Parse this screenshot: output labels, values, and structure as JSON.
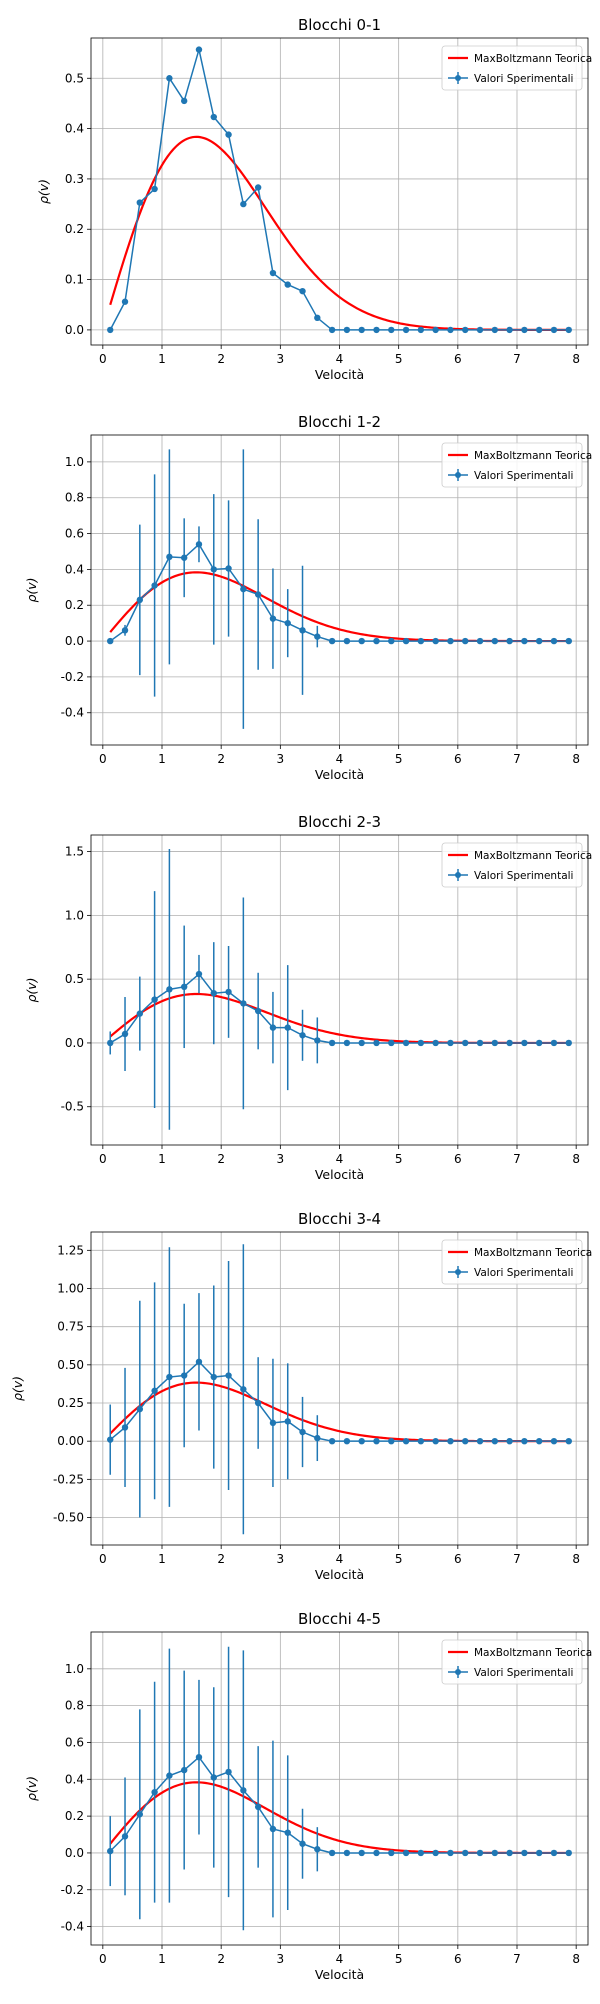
{
  "colors": {
    "theory": "#ff0000",
    "experimental": "#1f77b4",
    "grid": "#b0b0b0",
    "axes": "#000000"
  },
  "chart_data": [
    {
      "type": "line",
      "title": "Blocchi 0-1",
      "xlabel": "Velocità",
      "ylabel": "ρ(v)",
      "xlim": [
        -0.2,
        8.2
      ],
      "ylim": [
        -0.03,
        0.58
      ],
      "xticks": [
        0,
        1,
        2,
        3,
        4,
        5,
        6,
        7,
        8
      ],
      "yticks": [
        0.0,
        0.1,
        0.2,
        0.3,
        0.4,
        0.5
      ],
      "ytick_decimals": 1,
      "grid": true,
      "legend_position": "top-right",
      "series": [
        {
          "name": "MaxBoltzmann Teorica",
          "kind": "line",
          "distribution": "maxwell-boltzmann-2d",
          "kT": 2.5
        },
        {
          "name": "Valori Sperimentali",
          "kind": "errorbar",
          "x": [
            0.125,
            0.375,
            0.625,
            0.875,
            1.125,
            1.375,
            1.625,
            1.875,
            2.125,
            2.375,
            2.625,
            2.875,
            3.125,
            3.375,
            3.625,
            3.875,
            4.125,
            4.375,
            4.625,
            4.875,
            5.125,
            5.375,
            5.625,
            5.875,
            6.125,
            6.375,
            6.625,
            6.875,
            7.125,
            7.375,
            7.625,
            7.875
          ],
          "y": [
            0.0,
            0.056,
            0.253,
            0.28,
            0.5,
            0.455,
            0.557,
            0.423,
            0.388,
            0.25,
            0.283,
            0.113,
            0.09,
            0.077,
            0.024,
            0,
            0,
            0,
            0,
            0,
            0,
            0,
            0,
            0,
            0,
            0,
            0,
            0,
            0,
            0,
            0,
            0
          ],
          "yerr": [
            0,
            0,
            0,
            0,
            0,
            0,
            0,
            0,
            0,
            0,
            0,
            0,
            0,
            0,
            0,
            0,
            0,
            0,
            0,
            0,
            0,
            0,
            0,
            0,
            0,
            0,
            0,
            0,
            0,
            0,
            0,
            0
          ]
        }
      ]
    },
    {
      "type": "line",
      "title": "Blocchi 1-2",
      "xlabel": "Velocità",
      "ylabel": "ρ(v)",
      "xlim": [
        -0.2,
        8.2
      ],
      "ylim": [
        -0.58,
        1.15
      ],
      "xticks": [
        0,
        1,
        2,
        3,
        4,
        5,
        6,
        7,
        8
      ],
      "yticks": [
        -0.4,
        -0.2,
        0.0,
        0.2,
        0.4,
        0.6,
        0.8,
        1.0
      ],
      "ytick_decimals": 1,
      "grid": true,
      "legend_position": "top-right",
      "series": [
        {
          "name": "MaxBoltzmann Teorica",
          "kind": "line",
          "distribution": "maxwell-boltzmann-2d",
          "kT": 2.5
        },
        {
          "name": "Valori Sperimentali",
          "kind": "errorbar",
          "x": [
            0.125,
            0.375,
            0.625,
            0.875,
            1.125,
            1.375,
            1.625,
            1.875,
            2.125,
            2.375,
            2.625,
            2.875,
            3.125,
            3.375,
            3.625,
            3.875,
            4.125,
            4.375,
            4.625,
            4.875,
            5.125,
            5.375,
            5.625,
            5.875,
            6.125,
            6.375,
            6.625,
            6.875,
            7.125,
            7.375,
            7.625,
            7.875
          ],
          "y": [
            0.0,
            0.06,
            0.23,
            0.31,
            0.47,
            0.465,
            0.54,
            0.4,
            0.405,
            0.29,
            0.26,
            0.125,
            0.1,
            0.06,
            0.025,
            0,
            0,
            0,
            0,
            0,
            0,
            0,
            0,
            0,
            0,
            0,
            0,
            0,
            0,
            0,
            0,
            0
          ],
          "yerr": [
            0.01,
            0.03,
            0.42,
            0.62,
            0.6,
            0.22,
            0.1,
            0.42,
            0.38,
            0.78,
            0.42,
            0.28,
            0.19,
            0.36,
            0.06,
            0.01,
            0,
            0,
            0,
            0,
            0,
            0,
            0,
            0,
            0,
            0,
            0,
            0,
            0,
            0,
            0,
            0
          ]
        }
      ]
    },
    {
      "type": "line",
      "title": "Blocchi 2-3",
      "xlabel": "Velocità",
      "ylabel": "ρ(v)",
      "xlim": [
        -0.2,
        8.2
      ],
      "ylim": [
        -0.8,
        1.63
      ],
      "xticks": [
        0,
        1,
        2,
        3,
        4,
        5,
        6,
        7,
        8
      ],
      "yticks": [
        -0.5,
        0.0,
        0.5,
        1.0,
        1.5
      ],
      "ytick_decimals": 1,
      "grid": true,
      "legend_position": "top-right",
      "series": [
        {
          "name": "MaxBoltzmann Teorica",
          "kind": "line",
          "distribution": "maxwell-boltzmann-2d",
          "kT": 2.5
        },
        {
          "name": "Valori Sperimentali",
          "kind": "errorbar",
          "x": [
            0.125,
            0.375,
            0.625,
            0.875,
            1.125,
            1.375,
            1.625,
            1.875,
            2.125,
            2.375,
            2.625,
            2.875,
            3.125,
            3.375,
            3.625,
            3.875,
            4.125,
            4.375,
            4.625,
            4.875,
            5.125,
            5.375,
            5.625,
            5.875,
            6.125,
            6.375,
            6.625,
            6.875,
            7.125,
            7.375,
            7.625,
            7.875
          ],
          "y": [
            0.0,
            0.07,
            0.23,
            0.34,
            0.42,
            0.44,
            0.54,
            0.39,
            0.4,
            0.31,
            0.25,
            0.12,
            0.12,
            0.06,
            0.02,
            0,
            0,
            0,
            0,
            0,
            0,
            0,
            0,
            0,
            0,
            0,
            0,
            0,
            0,
            0,
            0,
            0
          ],
          "yerr": [
            0.09,
            0.29,
            0.29,
            0.85,
            1.1,
            0.48,
            0.15,
            0.4,
            0.36,
            0.83,
            0.3,
            0.28,
            0.49,
            0.2,
            0.18,
            0.01,
            0,
            0,
            0,
            0,
            0,
            0,
            0,
            0,
            0,
            0,
            0,
            0,
            0,
            0,
            0,
            0
          ]
        }
      ]
    },
    {
      "type": "line",
      "title": "Blocchi 3-4",
      "xlabel": "Velocità",
      "ylabel": "ρ(v)",
      "xlim": [
        -0.2,
        8.2
      ],
      "ylim": [
        -0.68,
        1.37
      ],
      "xticks": [
        0,
        1,
        2,
        3,
        4,
        5,
        6,
        7,
        8
      ],
      "yticks": [
        -0.5,
        -0.25,
        0.0,
        0.25,
        0.5,
        0.75,
        1.0,
        1.25
      ],
      "ytick_decimals": 2,
      "grid": true,
      "legend_position": "top-right",
      "series": [
        {
          "name": "MaxBoltzmann Teorica",
          "kind": "line",
          "distribution": "maxwell-boltzmann-2d",
          "kT": 2.5
        },
        {
          "name": "Valori Sperimentali",
          "kind": "errorbar",
          "x": [
            0.125,
            0.375,
            0.625,
            0.875,
            1.125,
            1.375,
            1.625,
            1.875,
            2.125,
            2.375,
            2.625,
            2.875,
            3.125,
            3.375,
            3.625,
            3.875,
            4.125,
            4.375,
            4.625,
            4.875,
            5.125,
            5.375,
            5.625,
            5.875,
            6.125,
            6.375,
            6.625,
            6.875,
            7.125,
            7.375,
            7.625,
            7.875
          ],
          "y": [
            0.01,
            0.09,
            0.21,
            0.33,
            0.42,
            0.43,
            0.52,
            0.42,
            0.43,
            0.34,
            0.25,
            0.12,
            0.13,
            0.06,
            0.02,
            0,
            0,
            0,
            0,
            0,
            0,
            0,
            0,
            0,
            0,
            0,
            0,
            0,
            0,
            0,
            0,
            0
          ],
          "yerr": [
            0.23,
            0.39,
            0.71,
            0.71,
            0.85,
            0.47,
            0.45,
            0.6,
            0.75,
            0.95,
            0.3,
            0.42,
            0.38,
            0.23,
            0.15,
            0.01,
            0,
            0,
            0,
            0,
            0,
            0,
            0,
            0,
            0,
            0,
            0,
            0,
            0,
            0,
            0,
            0
          ]
        }
      ]
    },
    {
      "type": "line",
      "title": "Blocchi 4-5",
      "xlabel": "Velocità",
      "ylabel": "ρ(v)",
      "xlim": [
        -0.2,
        8.2
      ],
      "ylim": [
        -0.5,
        1.2
      ],
      "xticks": [
        0,
        1,
        2,
        3,
        4,
        5,
        6,
        7,
        8
      ],
      "yticks": [
        -0.4,
        -0.2,
        0.0,
        0.2,
        0.4,
        0.6,
        0.8,
        1.0
      ],
      "ytick_decimals": 1,
      "grid": true,
      "legend_position": "top-right",
      "series": [
        {
          "name": "MaxBoltzmann Teorica",
          "kind": "line",
          "distribution": "maxwell-boltzmann-2d",
          "kT": 2.5
        },
        {
          "name": "Valori Sperimentali",
          "kind": "errorbar",
          "x": [
            0.125,
            0.375,
            0.625,
            0.875,
            1.125,
            1.375,
            1.625,
            1.875,
            2.125,
            2.375,
            2.625,
            2.875,
            3.125,
            3.375,
            3.625,
            3.875,
            4.125,
            4.375,
            4.625,
            4.875,
            5.125,
            5.375,
            5.625,
            5.875,
            6.125,
            6.375,
            6.625,
            6.875,
            7.125,
            7.375,
            7.625,
            7.875
          ],
          "y": [
            0.01,
            0.09,
            0.21,
            0.33,
            0.42,
            0.45,
            0.52,
            0.41,
            0.44,
            0.34,
            0.25,
            0.13,
            0.11,
            0.05,
            0.02,
            0,
            0,
            0,
            0,
            0,
            0,
            0,
            0,
            0,
            0,
            0,
            0,
            0,
            0,
            0,
            0,
            0
          ],
          "yerr": [
            0.19,
            0.32,
            0.57,
            0.6,
            0.69,
            0.54,
            0.42,
            0.49,
            0.68,
            0.76,
            0.33,
            0.48,
            0.42,
            0.19,
            0.12,
            0.01,
            0,
            0,
            0,
            0,
            0,
            0,
            0,
            0,
            0,
            0,
            0,
            0,
            0,
            0,
            0,
            0
          ]
        }
      ]
    }
  ]
}
